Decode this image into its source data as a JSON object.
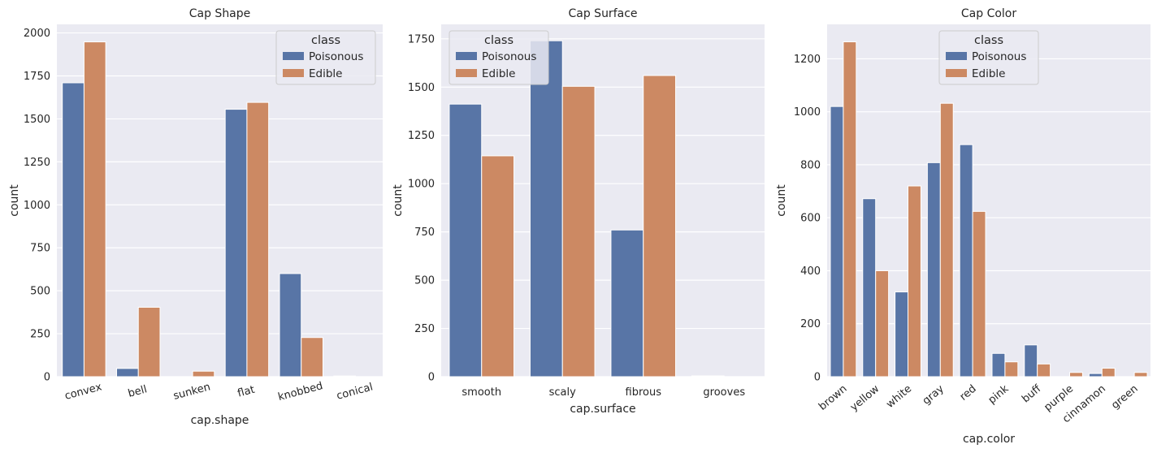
{
  "colors": {
    "Poisonous": "#5875a6",
    "Edible": "#cc8963"
  },
  "chart_data": [
    {
      "type": "bar",
      "title": "Cap Shape",
      "xlabel": "cap.shape",
      "ylabel": "count",
      "categories": [
        "convex",
        "bell",
        "sunken",
        "flat",
        "knobbed",
        "conical"
      ],
      "series": [
        {
          "name": "Poisonous",
          "values": [
            1710,
            48,
            0,
            1556,
            600,
            4
          ]
        },
        {
          "name": "Edible",
          "values": [
            1948,
            404,
            32,
            1596,
            228,
            0
          ]
        }
      ],
      "ylim": [
        0,
        2050
      ],
      "yticks": [
        0,
        250,
        500,
        750,
        1000,
        1250,
        1500,
        1750,
        2000
      ],
      "ytick_labels": [
        "0",
        "250",
        "500",
        "750",
        "1000",
        "1250",
        "1500",
        "1750",
        "2000"
      ],
      "grid": true,
      "legend": {
        "title": "class",
        "placement": "top-right",
        "entries": [
          "Poisonous",
          "Edible"
        ]
      },
      "xtick_rotation": 15
    },
    {
      "type": "bar",
      "title": "Cap Surface",
      "xlabel": "cap.surface",
      "ylabel": "count",
      "categories": [
        "smooth",
        "scaly",
        "fibrous",
        "grooves"
      ],
      "series": [
        {
          "name": "Poisonous",
          "values": [
            1412,
            1740,
            760,
            4
          ]
        },
        {
          "name": "Edible",
          "values": [
            1144,
            1504,
            1560,
            0
          ]
        }
      ],
      "ylim": [
        0,
        1825
      ],
      "yticks": [
        0,
        250,
        500,
        750,
        1000,
        1250,
        1500,
        1750
      ],
      "ytick_labels": [
        "0",
        "250",
        "500",
        "750",
        "1000",
        "1250",
        "1500",
        "1750"
      ],
      "grid": true,
      "legend": {
        "title": "class",
        "placement": "top-left",
        "entries": [
          "Poisonous",
          "Edible"
        ]
      },
      "xtick_rotation": 0
    },
    {
      "type": "bar",
      "title": "Cap Color",
      "xlabel": "cap.color",
      "ylabel": "count",
      "categories": [
        "brown",
        "yellow",
        "white",
        "gray",
        "red",
        "pink",
        "buff",
        "purple",
        "cinnamon",
        "green"
      ],
      "series": [
        {
          "name": "Poisonous",
          "values": [
            1020,
            672,
            320,
            808,
            876,
            88,
            120,
            0,
            12,
            0
          ]
        },
        {
          "name": "Edible",
          "values": [
            1264,
            400,
            720,
            1032,
            624,
            56,
            48,
            16,
            32,
            16
          ]
        }
      ],
      "ylim": [
        0,
        1330
      ],
      "yticks": [
        0,
        200,
        400,
        600,
        800,
        1000,
        1200
      ],
      "ytick_labels": [
        "0",
        "200",
        "400",
        "600",
        "800",
        "1000",
        "1200"
      ],
      "grid": true,
      "legend": {
        "title": "class",
        "placement": "top-center",
        "entries": [
          "Poisonous",
          "Edible"
        ]
      },
      "xtick_rotation": 40
    }
  ]
}
